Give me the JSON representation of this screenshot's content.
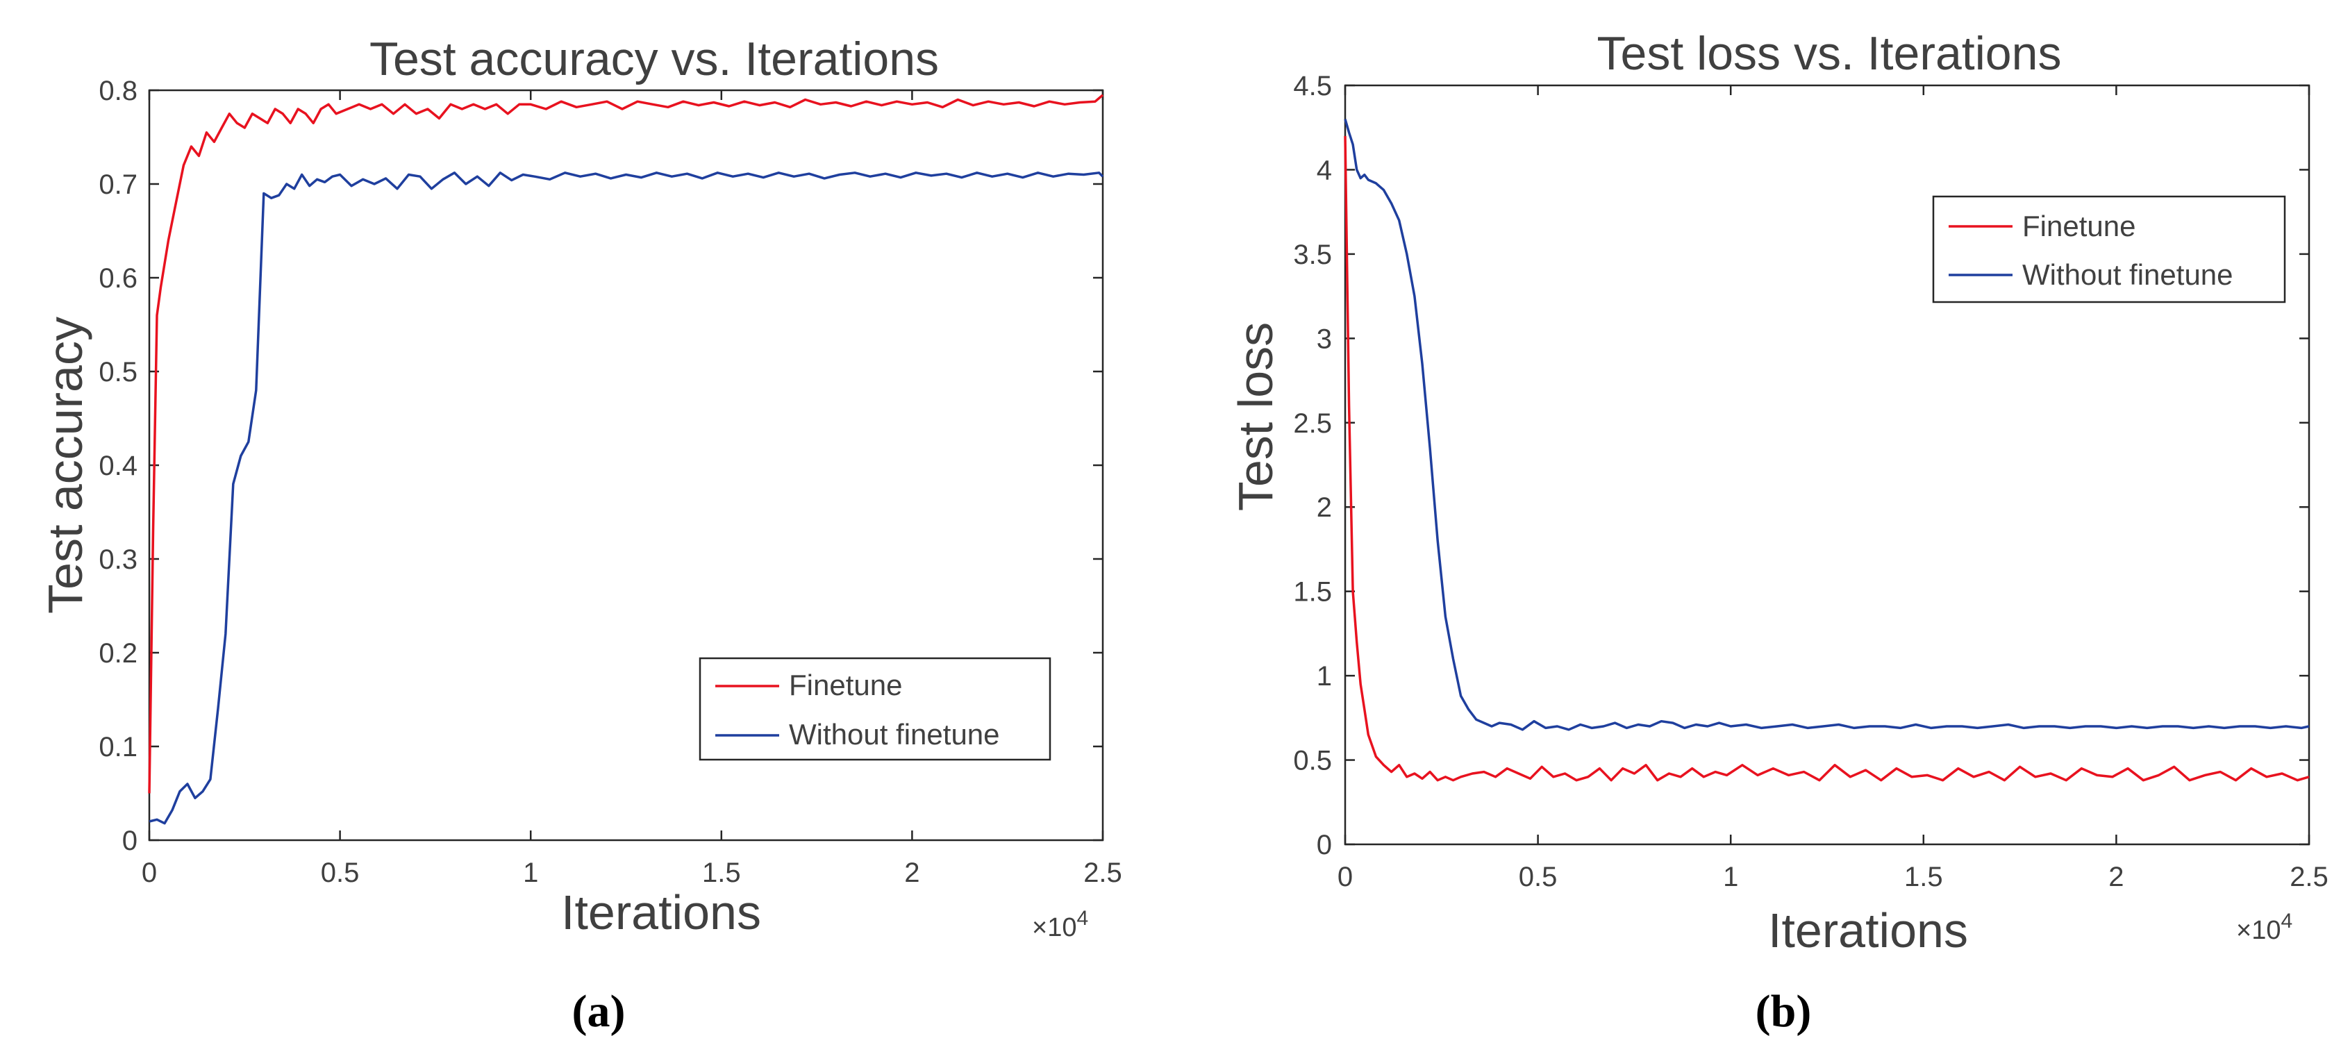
{
  "colors": {
    "finetune": "#e8121f",
    "without": "#1f3f9e",
    "axis": "#262626",
    "text": "#404040"
  },
  "chart_data": [
    {
      "id": "a",
      "type": "line",
      "title": "Test accuracy vs. Iterations",
      "xlabel": "Iterations",
      "ylabel": "Test accuracy",
      "panel_label": "(a)",
      "xlim": [
        0,
        25000
      ],
      "ylim": [
        0,
        0.8
      ],
      "x_exponent": "×10",
      "x_exponent_power": "4",
      "xticks": [
        0,
        5000,
        10000,
        15000,
        20000,
        25000
      ],
      "xtick_labels": [
        "0",
        "0.5",
        "1",
        "1.5",
        "2",
        "2.5"
      ],
      "yticks": [
        0,
        0.1,
        0.2,
        0.3,
        0.4,
        0.5,
        0.6,
        0.7,
        0.8
      ],
      "ytick_labels": [
        "0",
        "0.1",
        "0.2",
        "0.3",
        "0.4",
        "0.5",
        "0.6",
        "0.7",
        "0.8"
      ],
      "legend": [
        "Finetune",
        "Without finetune"
      ],
      "legend_position": "bottom-right",
      "series": [
        {
          "name": "Finetune",
          "x": [
            0,
            100,
            200,
            300,
            500,
            700,
            900,
            1100,
            1300,
            1500,
            1700,
            1900,
            2100,
            2300,
            2500,
            2700,
            2900,
            3100,
            3300,
            3500,
            3700,
            3900,
            4100,
            4300,
            4500,
            4700,
            4900,
            5200,
            5500,
            5800,
            6100,
            6400,
            6700,
            7000,
            7300,
            7600,
            7900,
            8200,
            8500,
            8800,
            9100,
            9400,
            9700,
            10000,
            10400,
            10800,
            11200,
            11600,
            12000,
            12400,
            12800,
            13200,
            13600,
            14000,
            14400,
            14800,
            15200,
            15600,
            16000,
            16400,
            16800,
            17200,
            17600,
            18000,
            18400,
            18800,
            19200,
            19600,
            20000,
            20400,
            20800,
            21200,
            21600,
            22000,
            22400,
            22800,
            23200,
            23600,
            24000,
            24400,
            24800,
            25000
          ],
          "values": [
            0.05,
            0.33,
            0.56,
            0.59,
            0.64,
            0.68,
            0.72,
            0.74,
            0.73,
            0.755,
            0.745,
            0.76,
            0.775,
            0.765,
            0.76,
            0.775,
            0.77,
            0.765,
            0.78,
            0.775,
            0.765,
            0.78,
            0.775,
            0.765,
            0.78,
            0.785,
            0.775,
            0.78,
            0.785,
            0.78,
            0.785,
            0.775,
            0.785,
            0.775,
            0.78,
            0.77,
            0.785,
            0.78,
            0.785,
            0.78,
            0.785,
            0.775,
            0.785,
            0.785,
            0.78,
            0.788,
            0.782,
            0.785,
            0.788,
            0.78,
            0.788,
            0.785,
            0.782,
            0.788,
            0.784,
            0.787,
            0.783,
            0.788,
            0.784,
            0.787,
            0.782,
            0.79,
            0.785,
            0.787,
            0.783,
            0.788,
            0.784,
            0.788,
            0.785,
            0.787,
            0.782,
            0.79,
            0.784,
            0.788,
            0.785,
            0.787,
            0.783,
            0.788,
            0.785,
            0.787,
            0.788,
            0.795
          ]
        },
        {
          "name": "Without finetune",
          "x": [
            0,
            200,
            400,
            600,
            800,
            1000,
            1200,
            1400,
            1600,
            1800,
            2000,
            2200,
            2400,
            2600,
            2800,
            3000,
            3200,
            3400,
            3600,
            3800,
            4000,
            4200,
            4400,
            4600,
            4800,
            5000,
            5300,
            5600,
            5900,
            6200,
            6500,
            6800,
            7100,
            7400,
            7700,
            8000,
            8300,
            8600,
            8900,
            9200,
            9500,
            9800,
            10100,
            10500,
            10900,
            11300,
            11700,
            12100,
            12500,
            12900,
            13300,
            13700,
            14100,
            14500,
            14900,
            15300,
            15700,
            16100,
            16500,
            16900,
            17300,
            17700,
            18100,
            18500,
            18900,
            19300,
            19700,
            20100,
            20500,
            20900,
            21300,
            21700,
            22100,
            22500,
            22900,
            23300,
            23700,
            24100,
            24500,
            24900,
            25000
          ],
          "values": [
            0.02,
            0.022,
            0.018,
            0.032,
            0.052,
            0.06,
            0.045,
            0.052,
            0.065,
            0.14,
            0.22,
            0.38,
            0.41,
            0.425,
            0.48,
            0.69,
            0.685,
            0.688,
            0.7,
            0.695,
            0.71,
            0.698,
            0.705,
            0.702,
            0.708,
            0.71,
            0.698,
            0.705,
            0.7,
            0.706,
            0.695,
            0.71,
            0.708,
            0.695,
            0.705,
            0.712,
            0.7,
            0.708,
            0.698,
            0.712,
            0.704,
            0.71,
            0.708,
            0.705,
            0.712,
            0.708,
            0.711,
            0.706,
            0.71,
            0.707,
            0.712,
            0.708,
            0.711,
            0.706,
            0.712,
            0.708,
            0.711,
            0.707,
            0.712,
            0.708,
            0.711,
            0.706,
            0.71,
            0.712,
            0.708,
            0.711,
            0.707,
            0.712,
            0.709,
            0.711,
            0.707,
            0.712,
            0.708,
            0.711,
            0.707,
            0.712,
            0.708,
            0.711,
            0.71,
            0.712,
            0.708
          ]
        }
      ]
    },
    {
      "id": "b",
      "type": "line",
      "title": "Test loss vs. Iterations",
      "xlabel": "Iterations",
      "ylabel": "Test loss",
      "panel_label": "(b)",
      "xlim": [
        0,
        25000
      ],
      "ylim": [
        0,
        4.5
      ],
      "x_exponent": "×10",
      "x_exponent_power": "4",
      "xticks": [
        0,
        5000,
        10000,
        15000,
        20000,
        25000
      ],
      "xtick_labels": [
        "0",
        "0.5",
        "1",
        "1.5",
        "2",
        "2.5"
      ],
      "yticks": [
        0,
        0.5,
        1,
        1.5,
        2,
        2.5,
        3,
        3.5,
        4,
        4.5
      ],
      "ytick_labels": [
        "0",
        "0.5",
        "1",
        "1.5",
        "2",
        "2.5",
        "3",
        "3.5",
        "4",
        "4.5"
      ],
      "legend": [
        "Finetune",
        "Without finetune"
      ],
      "legend_position": "top-right",
      "series": [
        {
          "name": "Finetune",
          "x": [
            0,
            100,
            200,
            300,
            400,
            500,
            600,
            800,
            1000,
            1200,
            1400,
            1600,
            1800,
            2000,
            2200,
            2400,
            2600,
            2800,
            3000,
            3300,
            3600,
            3900,
            4200,
            4500,
            4800,
            5100,
            5400,
            5700,
            6000,
            6300,
            6600,
            6900,
            7200,
            7500,
            7800,
            8100,
            8400,
            8700,
            9000,
            9300,
            9600,
            9900,
            10300,
            10700,
            11100,
            11500,
            11900,
            12300,
            12700,
            13100,
            13500,
            13900,
            14300,
            14700,
            15100,
            15500,
            15900,
            16300,
            16700,
            17100,
            17500,
            17900,
            18300,
            18700,
            19100,
            19500,
            19900,
            20300,
            20700,
            21100,
            21500,
            21900,
            22300,
            22700,
            23100,
            23500,
            23900,
            24300,
            24700,
            25000
          ],
          "values": [
            4.2,
            2.6,
            1.5,
            1.2,
            0.95,
            0.8,
            0.65,
            0.52,
            0.47,
            0.43,
            0.47,
            0.4,
            0.42,
            0.39,
            0.43,
            0.38,
            0.4,
            0.38,
            0.4,
            0.42,
            0.43,
            0.4,
            0.45,
            0.42,
            0.39,
            0.46,
            0.4,
            0.42,
            0.38,
            0.4,
            0.45,
            0.38,
            0.45,
            0.42,
            0.47,
            0.38,
            0.42,
            0.4,
            0.45,
            0.4,
            0.43,
            0.41,
            0.47,
            0.41,
            0.45,
            0.41,
            0.43,
            0.38,
            0.47,
            0.4,
            0.44,
            0.38,
            0.45,
            0.4,
            0.41,
            0.38,
            0.45,
            0.4,
            0.43,
            0.38,
            0.46,
            0.4,
            0.42,
            0.38,
            0.45,
            0.41,
            0.4,
            0.45,
            0.38,
            0.41,
            0.46,
            0.38,
            0.41,
            0.43,
            0.38,
            0.45,
            0.4,
            0.42,
            0.38,
            0.4
          ]
        },
        {
          "name": "Without finetune",
          "x": [
            0,
            100,
            200,
            300,
            400,
            500,
            600,
            800,
            1000,
            1200,
            1400,
            1600,
            1800,
            2000,
            2200,
            2400,
            2600,
            2800,
            3000,
            3200,
            3400,
            3600,
            3800,
            4000,
            4300,
            4600,
            4900,
            5200,
            5500,
            5800,
            6100,
            6400,
            6700,
            7000,
            7300,
            7600,
            7900,
            8200,
            8500,
            8800,
            9100,
            9400,
            9700,
            10000,
            10400,
            10800,
            11200,
            11600,
            12000,
            12400,
            12800,
            13200,
            13600,
            14000,
            14400,
            14800,
            15200,
            15600,
            16000,
            16400,
            16800,
            17200,
            17600,
            18000,
            18400,
            18800,
            19200,
            19600,
            20000,
            20400,
            20800,
            21200,
            21600,
            22000,
            22400,
            22800,
            23200,
            23600,
            24000,
            24400,
            24800,
            25000
          ],
          "values": [
            4.3,
            4.22,
            4.15,
            4.0,
            3.95,
            3.97,
            3.94,
            3.92,
            3.88,
            3.8,
            3.7,
            3.5,
            3.25,
            2.85,
            2.35,
            1.8,
            1.35,
            1.1,
            0.88,
            0.8,
            0.74,
            0.72,
            0.7,
            0.72,
            0.71,
            0.68,
            0.73,
            0.69,
            0.7,
            0.68,
            0.71,
            0.69,
            0.7,
            0.72,
            0.69,
            0.71,
            0.7,
            0.73,
            0.72,
            0.69,
            0.71,
            0.7,
            0.72,
            0.7,
            0.71,
            0.69,
            0.7,
            0.71,
            0.69,
            0.7,
            0.71,
            0.69,
            0.7,
            0.7,
            0.69,
            0.71,
            0.69,
            0.7,
            0.7,
            0.69,
            0.7,
            0.71,
            0.69,
            0.7,
            0.7,
            0.69,
            0.7,
            0.7,
            0.69,
            0.7,
            0.69,
            0.7,
            0.7,
            0.69,
            0.7,
            0.69,
            0.7,
            0.7,
            0.69,
            0.7,
            0.69,
            0.7
          ]
        }
      ]
    }
  ]
}
